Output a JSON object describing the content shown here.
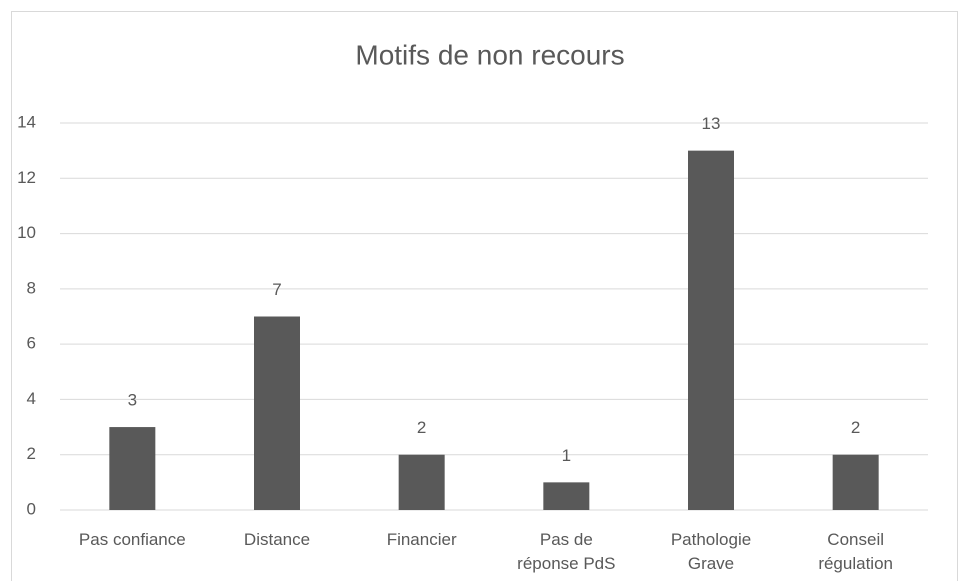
{
  "chart_data": {
    "type": "bar",
    "title": "Motifs de non recours",
    "categories": [
      "Pas confiance",
      "Distance",
      "Financier",
      "Pas de\nréponse PdS",
      "Pathologie\nGrave",
      "Conseil\nrégulation"
    ],
    "values": [
      3,
      7,
      2,
      1,
      13,
      2
    ],
    "color": "#595959",
    "ylim": [
      0,
      14
    ],
    "yticks": [
      0,
      2,
      4,
      6,
      8,
      10,
      12,
      14
    ],
    "grid": true
  }
}
